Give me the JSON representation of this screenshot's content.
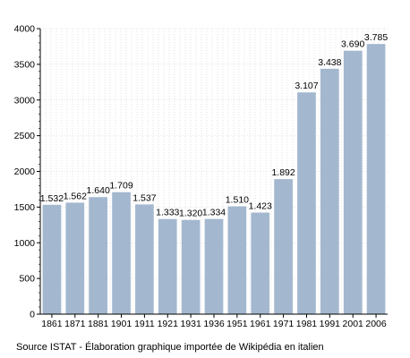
{
  "chart_data": {
    "type": "bar",
    "categories": [
      "1861",
      "1871",
      "1881",
      "1901",
      "1911",
      "1921",
      "1931",
      "1936",
      "1951",
      "1961",
      "1971",
      "1981",
      "1991",
      "2001",
      "2006"
    ],
    "values": [
      1532,
      1562,
      1640,
      1709,
      1537,
      1333,
      1320,
      1334,
      1510,
      1423,
      1892,
      3107,
      3438,
      3690,
      3785
    ],
    "value_labels": [
      "1.532",
      "1.562",
      "1.640",
      "1.709",
      "1.537",
      "1.333",
      "1.320",
      "1.334",
      "1.510",
      "1.423",
      "1.892",
      "3.107",
      "3.438",
      "3.690",
      "3.785"
    ],
    "yticks": [
      "0",
      "500",
      "1000",
      "1500",
      "2000",
      "2500",
      "3000",
      "3500",
      "4000"
    ],
    "ylim": [
      0,
      4000
    ],
    "grid": true,
    "legend": "none",
    "bar_color": "#a3b8cf"
  },
  "footer": {
    "source": "Source ISTAT - Élaboration graphique importée de Wikipédia en italien"
  }
}
